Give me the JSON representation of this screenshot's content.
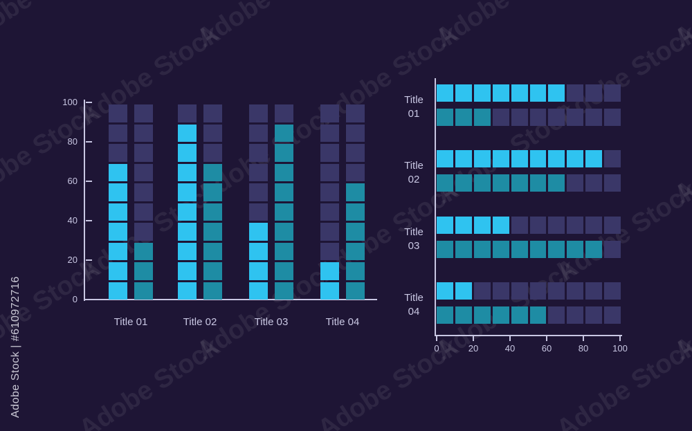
{
  "palette": {
    "background": "#1E1535",
    "fill_primary": "#2FC3F0",
    "fill_secondary": "#1E8CA4",
    "empty_segment": "#3A3768",
    "axis": "#C9C7E3",
    "label": "#C9C7E3"
  },
  "watermark": {
    "tile_text": "Adobe Stock",
    "id_text": "Adobe Stock | #610972716"
  },
  "chart_data": [
    {
      "type": "bar",
      "subtype": "segmented-square-stacked",
      "orientation": "vertical",
      "title": "",
      "categories": [
        "Title 01",
        "Title 02",
        "Title 03",
        "Title 04"
      ],
      "series": [
        {
          "name": "primary-cyan",
          "color": "#2FC3F0",
          "values": [
            70,
            90,
            40,
            20
          ]
        },
        {
          "name": "secondary-teal",
          "color": "#1E8CA4",
          "values": [
            30,
            70,
            90,
            60
          ]
        }
      ],
      "ylim": [
        0,
        100
      ],
      "yticks": [
        0,
        20,
        40,
        60,
        80,
        100
      ],
      "segments_per_bar": 10,
      "segment_unit": 10,
      "grid": false,
      "legend": false
    },
    {
      "type": "bar",
      "subtype": "segmented-square-stacked",
      "orientation": "horizontal",
      "title": "",
      "categories": [
        "Title 01",
        "Title 02",
        "Title 03",
        "Title 04"
      ],
      "series": [
        {
          "name": "primary-cyan",
          "color": "#2FC3F0",
          "values": [
            70,
            90,
            40,
            20
          ]
        },
        {
          "name": "secondary-teal",
          "color": "#1E8CA4",
          "values": [
            30,
            70,
            90,
            60
          ]
        }
      ],
      "xlim": [
        0,
        100
      ],
      "xticks": [
        0,
        20,
        40,
        60,
        80,
        100
      ],
      "segments_per_bar": 10,
      "segment_unit": 10,
      "grid": false,
      "legend": false
    }
  ]
}
